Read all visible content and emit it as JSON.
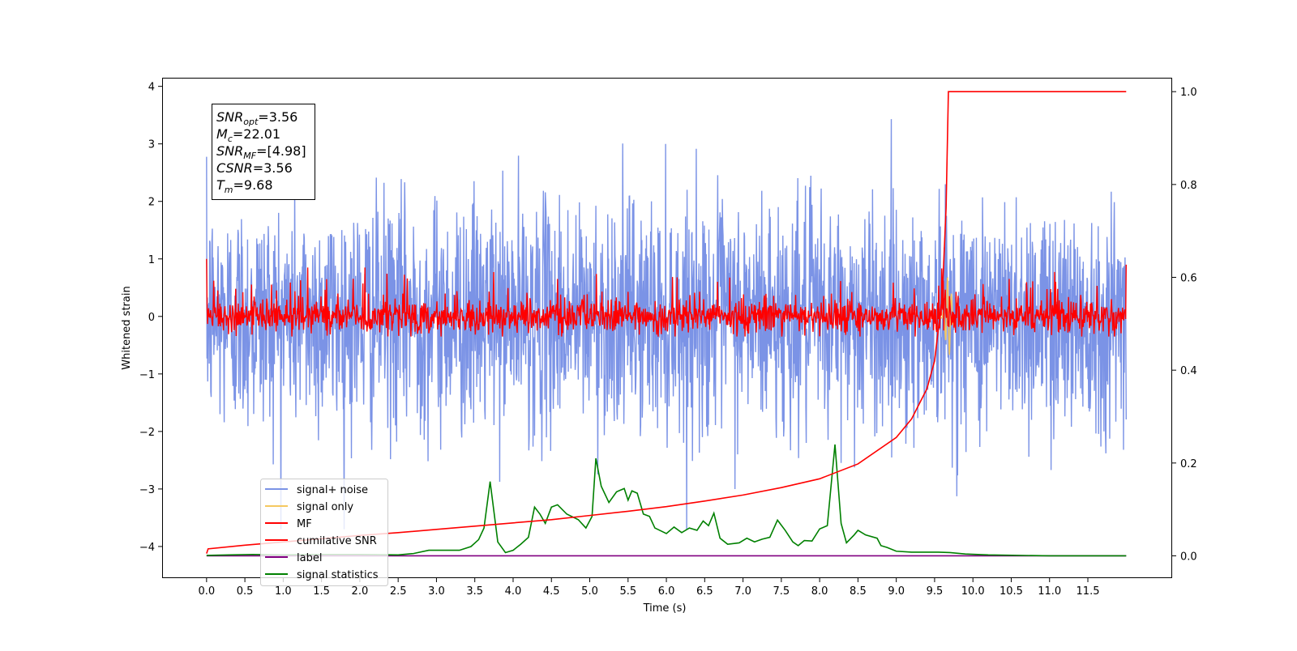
{
  "chart_data": {
    "type": "line",
    "xlabel": "Time (s)",
    "ylabel": "Whitened strain",
    "xlim": [
      -0.58,
      12.6
    ],
    "ylim": [
      -4.55,
      4.15
    ],
    "y2lim": [
      -0.048,
      1.03
    ],
    "x_ticks": [
      0.0,
      0.5,
      1.0,
      1.5,
      2.0,
      2.5,
      3.0,
      3.5,
      4.0,
      4.5,
      5.0,
      5.5,
      6.0,
      6.5,
      7.0,
      7.5,
      8.0,
      8.5,
      9.0,
      9.5,
      10.0,
      10.5,
      11.0,
      11.5
    ],
    "x_tick_labels": [
      "0.0",
      "0.5",
      "1.0",
      "1.5",
      "2.0",
      "2.5",
      "3.0",
      "3.5",
      "4.0",
      "4.5",
      "5.0",
      "5.5",
      "6.0",
      "6.5",
      "7.0",
      "7.5",
      "8.0",
      "8.5",
      "9.0",
      "9.5",
      "10.0",
      "10.5",
      "11.0",
      "11.5"
    ],
    "y_ticks": [
      4,
      3,
      2,
      1,
      0,
      -1,
      -2,
      -3,
      -4
    ],
    "y_tick_labels": [
      "4",
      "3",
      "2",
      "1",
      "0",
      "−1",
      "−2",
      "−3",
      "−4"
    ],
    "y2_ticks": [
      1.0,
      0.8,
      0.6,
      0.4,
      0.2,
      0.0
    ],
    "y2_tick_labels": [
      "1.0",
      "0.8",
      "0.6",
      "0.4",
      "0.2",
      "0.0"
    ],
    "grid": false,
    "legend_position": "lower-left",
    "annotation": {
      "lines": [
        {
          "sym": "SNR",
          "sub": "opt",
          "val": "=3.56"
        },
        {
          "sym": "M",
          "sub": "c",
          "val": "=22.01"
        },
        {
          "sym": "SNR",
          "sub": "MF",
          "val": "=[4.98]"
        },
        {
          "sym": "CSNR",
          "sub": "",
          "val": "=3.56"
        },
        {
          "sym": "T",
          "sub": "m",
          "val": "=9.68"
        }
      ]
    },
    "series": [
      {
        "name": "signal+ noise",
        "axis": "left",
        "color": "#7b93e6",
        "kind": "noise",
        "x_range": [
          0.0,
          12.0
        ],
        "amplitude_range": [
          -3.7,
          3.7
        ]
      },
      {
        "name": "signal only",
        "axis": "left",
        "color": "#f5c860",
        "kind": "chirp",
        "x_range": [
          9.55,
          9.75
        ],
        "peak": 0.72
      },
      {
        "name": "MF",
        "axis": "left",
        "color": "#ff0000",
        "kind": "noise",
        "x_range": [
          0.0,
          12.0
        ],
        "amplitude_range": [
          -0.35,
          0.85
        ],
        "endpoints": [
          1.0,
          0.9
        ]
      },
      {
        "name": "cumilative SNR",
        "axis": "right",
        "color": "#ff0000",
        "x": [
          0.0,
          0.02,
          0.5,
          1.0,
          1.5,
          2.0,
          2.5,
          3.0,
          3.5,
          4.0,
          4.5,
          5.0,
          5.5,
          6.0,
          6.5,
          7.0,
          7.5,
          8.0,
          8.5,
          9.0,
          9.2,
          9.4,
          9.5,
          9.6,
          9.65,
          9.68,
          9.7,
          10.0,
          11.0,
          12.0
        ],
        "y": [
          0.005,
          0.015,
          0.023,
          0.03,
          0.037,
          0.044,
          0.05,
          0.057,
          0.064,
          0.071,
          0.078,
          0.087,
          0.096,
          0.106,
          0.118,
          0.131,
          0.147,
          0.166,
          0.198,
          0.255,
          0.295,
          0.36,
          0.42,
          0.56,
          0.75,
          1.0,
          1.0,
          1.0,
          1.0,
          1.0
        ]
      },
      {
        "name": "label",
        "axis": "right",
        "color": "#800080",
        "x": [
          0.0,
          12.0
        ],
        "y": [
          0.0,
          0.0
        ]
      },
      {
        "name": "signal statistics",
        "axis": "right",
        "color": "#008000",
        "x": [
          0.0,
          0.3,
          0.6,
          1.0,
          1.5,
          2.0,
          2.5,
          2.7,
          2.9,
          3.1,
          3.3,
          3.45,
          3.55,
          3.62,
          3.7,
          3.8,
          3.9,
          4.0,
          4.1,
          4.2,
          4.28,
          4.35,
          4.42,
          4.5,
          4.58,
          4.7,
          4.85,
          4.95,
          5.03,
          5.08,
          5.15,
          5.25,
          5.35,
          5.45,
          5.5,
          5.55,
          5.62,
          5.7,
          5.78,
          5.85,
          6.0,
          6.1,
          6.2,
          6.3,
          6.4,
          6.48,
          6.55,
          6.62,
          6.7,
          6.8,
          6.95,
          7.05,
          7.15,
          7.25,
          7.35,
          7.45,
          7.55,
          7.65,
          7.72,
          7.8,
          7.9,
          8.0,
          8.1,
          8.2,
          8.28,
          8.35,
          8.45,
          8.5,
          8.6,
          8.75,
          8.8,
          8.88,
          9.0,
          9.2,
          9.4,
          9.55,
          9.7,
          9.9,
          10.2,
          11.0,
          12.0
        ],
        "y": [
          0.001,
          0.002,
          0.003,
          0.002,
          0.003,
          0.003,
          0.002,
          0.005,
          0.012,
          0.012,
          0.012,
          0.02,
          0.035,
          0.06,
          0.16,
          0.03,
          0.007,
          0.012,
          0.025,
          0.04,
          0.105,
          0.09,
          0.07,
          0.105,
          0.11,
          0.09,
          0.078,
          0.06,
          0.085,
          0.21,
          0.15,
          0.115,
          0.138,
          0.145,
          0.12,
          0.14,
          0.135,
          0.09,
          0.085,
          0.06,
          0.048,
          0.062,
          0.05,
          0.06,
          0.055,
          0.075,
          0.065,
          0.092,
          0.038,
          0.025,
          0.028,
          0.038,
          0.03,
          0.036,
          0.04,
          0.077,
          0.055,
          0.03,
          0.022,
          0.033,
          0.032,
          0.058,
          0.065,
          0.24,
          0.07,
          0.028,
          0.045,
          0.055,
          0.045,
          0.038,
          0.022,
          0.018,
          0.01,
          0.008,
          0.008,
          0.008,
          0.007,
          0.004,
          0.002,
          0.0,
          0.0
        ]
      }
    ]
  }
}
